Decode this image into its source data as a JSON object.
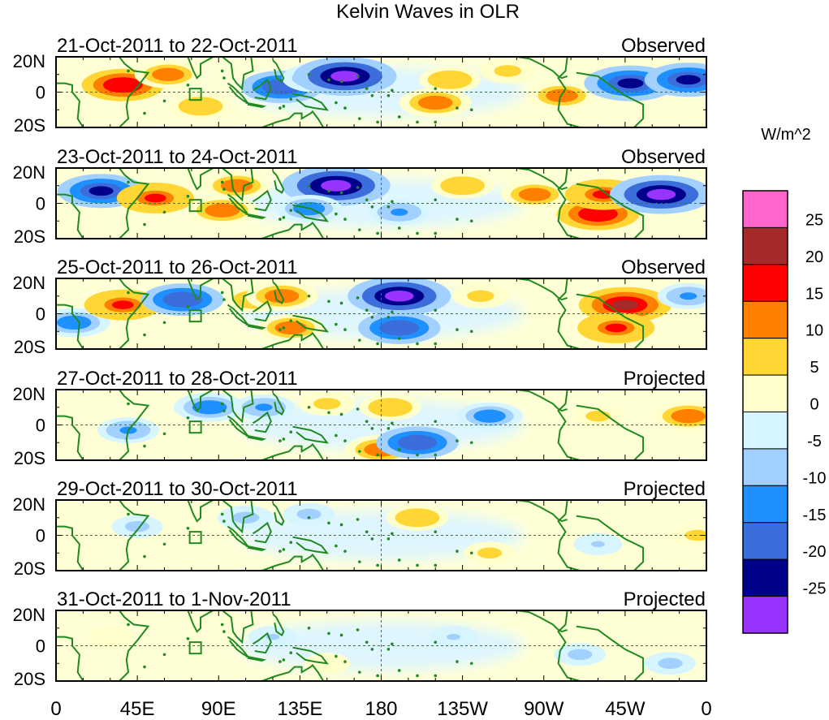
{
  "chart_data": {
    "type": "heatmap",
    "title": "Kelvin Waves in OLR",
    "variable": "OLR anomaly",
    "units": "W/m^2",
    "lat_ticks": [
      "20N",
      "0",
      "20S"
    ],
    "lon_ticks": [
      "0",
      "45E",
      "90E",
      "135E",
      "180",
      "135W",
      "90W",
      "45W",
      "0"
    ],
    "lon_values": [
      0,
      45,
      90,
      135,
      180,
      225,
      270,
      315,
      360
    ],
    "lat_range": [
      -20,
      20
    ],
    "lon_range": [
      0,
      360
    ],
    "colorbar": {
      "labels": [
        "25",
        "20",
        "15",
        "10",
        "5",
        "0",
        "-5",
        "-10",
        "-15",
        "-20",
        "-25"
      ],
      "levels": [
        25,
        20,
        15,
        10,
        5,
        0,
        -5,
        -10,
        -15,
        -20,
        -25
      ],
      "colors": [
        "#ff66cc",
        "#a52a2a",
        "#ff0000",
        "#ff7f00",
        "#ffd633",
        "#ffffcc",
        "#d6f5ff",
        "#a3d1ff",
        "#1f90ff",
        "#3b6ddb",
        "#00008b",
        "#9933ff"
      ]
    },
    "panels": [
      {
        "period": "21-Oct-2011 to 22-Oct-2011",
        "status": "Observed",
        "anomalies": [
          {
            "lon": 37,
            "lat": 4,
            "value": 18
          },
          {
            "lon": 62,
            "lat": 10,
            "value": 12
          },
          {
            "lon": 80,
            "lat": -8,
            "value": 10
          },
          {
            "lon": 125,
            "lat": 3,
            "value": -18
          },
          {
            "lon": 145,
            "lat": 8,
            "value": -14
          },
          {
            "lon": 160,
            "lat": 9,
            "value": -26
          },
          {
            "lon": 210,
            "lat": -6,
            "value": 14
          },
          {
            "lon": 218,
            "lat": 7,
            "value": 10
          },
          {
            "lon": 250,
            "lat": 12,
            "value": 8
          },
          {
            "lon": 280,
            "lat": -2,
            "value": 12
          },
          {
            "lon": 318,
            "lat": 5,
            "value": -22
          },
          {
            "lon": 350,
            "lat": 7,
            "value": -20
          }
        ]
      },
      {
        "period": "23-Oct-2011 to 24-Oct-2011",
        "status": "Observed",
        "anomalies": [
          {
            "lon": 25,
            "lat": 7,
            "value": -20
          },
          {
            "lon": 55,
            "lat": 3,
            "value": 16
          },
          {
            "lon": 92,
            "lat": -4,
            "value": 14
          },
          {
            "lon": 100,
            "lat": 10,
            "value": 12
          },
          {
            "lon": 155,
            "lat": 10,
            "value": -28
          },
          {
            "lon": 140,
            "lat": -3,
            "value": -12
          },
          {
            "lon": 190,
            "lat": -5,
            "value": -10
          },
          {
            "lon": 225,
            "lat": 10,
            "value": 10
          },
          {
            "lon": 265,
            "lat": 5,
            "value": 12
          },
          {
            "lon": 300,
            "lat": -6,
            "value": 18
          },
          {
            "lon": 303,
            "lat": 5,
            "value": 16
          },
          {
            "lon": 335,
            "lat": 5,
            "value": -26
          }
        ]
      },
      {
        "period": "25-Oct-2011 to 26-Oct-2011",
        "status": "Observed",
        "anomalies": [
          {
            "lon": 10,
            "lat": -5,
            "value": -14
          },
          {
            "lon": 37,
            "lat": 5,
            "value": 16
          },
          {
            "lon": 70,
            "lat": 8,
            "value": -18
          },
          {
            "lon": 110,
            "lat": 8,
            "value": 10
          },
          {
            "lon": 125,
            "lat": 10,
            "value": 14
          },
          {
            "lon": 130,
            "lat": -8,
            "value": 12
          },
          {
            "lon": 190,
            "lat": 10,
            "value": -26
          },
          {
            "lon": 190,
            "lat": -8,
            "value": -18
          },
          {
            "lon": 235,
            "lat": 10,
            "value": 8
          },
          {
            "lon": 315,
            "lat": 5,
            "value": 22
          },
          {
            "lon": 310,
            "lat": -8,
            "value": 16
          },
          {
            "lon": 350,
            "lat": 10,
            "value": -10
          }
        ]
      },
      {
        "period": "27-Oct-2011 to 28-Oct-2011",
        "status": "Projected",
        "anomalies": [
          {
            "lon": 40,
            "lat": -3,
            "value": -10
          },
          {
            "lon": 85,
            "lat": 10,
            "value": -14
          },
          {
            "lon": 115,
            "lat": 10,
            "value": -10
          },
          {
            "lon": 150,
            "lat": 12,
            "value": 8
          },
          {
            "lon": 185,
            "lat": 10,
            "value": 10
          },
          {
            "lon": 180,
            "lat": -14,
            "value": 14
          },
          {
            "lon": 200,
            "lat": -10,
            "value": -18
          },
          {
            "lon": 240,
            "lat": 5,
            "value": -12
          },
          {
            "lon": 300,
            "lat": 5,
            "value": 6
          },
          {
            "lon": 350,
            "lat": 5,
            "value": 14
          }
        ]
      },
      {
        "period": "29-Oct-2011 to 30-Oct-2011",
        "status": "Projected",
        "anomalies": [
          {
            "lon": 45,
            "lat": 5,
            "value": -6
          },
          {
            "lon": 105,
            "lat": 10,
            "value": -8
          },
          {
            "lon": 140,
            "lat": 12,
            "value": -6
          },
          {
            "lon": 200,
            "lat": 10,
            "value": 10
          },
          {
            "lon": 240,
            "lat": -10,
            "value": 6
          },
          {
            "lon": 300,
            "lat": -5,
            "value": -5
          },
          {
            "lon": 355,
            "lat": 0,
            "value": 6
          }
        ]
      },
      {
        "period": "31-Oct-2011 to 1-Nov-2011",
        "status": "Projected",
        "anomalies": [
          {
            "lon": 30,
            "lat": 5,
            "value": 4
          },
          {
            "lon": 120,
            "lat": 5,
            "value": -5
          },
          {
            "lon": 150,
            "lat": -10,
            "value": 4
          },
          {
            "lon": 220,
            "lat": 5,
            "value": -5
          },
          {
            "lon": 290,
            "lat": -5,
            "value": -6
          },
          {
            "lon": 340,
            "lat": -10,
            "value": -6
          }
        ]
      }
    ]
  }
}
